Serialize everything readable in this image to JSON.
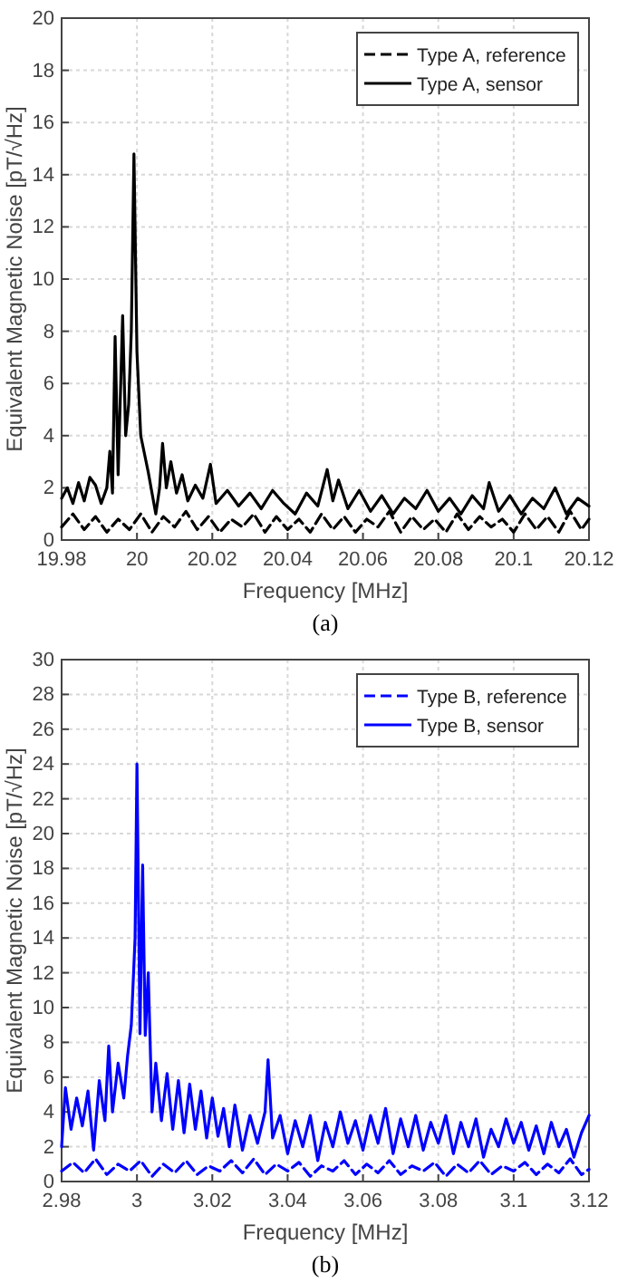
{
  "chart_data": [
    {
      "type": "line",
      "xlabel": "Frequency [MHz]",
      "ylabel": "Equivalent Magnetic Noise [pT/√Hz]",
      "annotations": [
        "(a)"
      ],
      "xlim": [
        19.98,
        20.12
      ],
      "xticks": [
        19.98,
        20,
        20.02,
        20.04,
        20.06,
        20.08,
        20.1,
        20.12
      ],
      "ylim": [
        0,
        20
      ],
      "yticks": [
        0,
        2,
        4,
        6,
        8,
        10,
        12,
        14,
        16,
        18,
        20
      ],
      "grid": true,
      "legend": "top right",
      "series": [
        {
          "name": "Type A, reference",
          "color": "#000000",
          "line_style": "dashed",
          "x": [
            19.98,
            19.983,
            19.986,
            19.989,
            19.992,
            19.995,
            19.998,
            20.001,
            20.004,
            20.007,
            20.01,
            20.013,
            20.016,
            20.019,
            20.022,
            20.025,
            20.028,
            20.031,
            20.034,
            20.037,
            20.04,
            20.043,
            20.046,
            20.049,
            20.052,
            20.055,
            20.058,
            20.061,
            20.064,
            20.067,
            20.07,
            20.073,
            20.076,
            20.079,
            20.082,
            20.085,
            20.088,
            20.091,
            20.094,
            20.097,
            20.1,
            20.103,
            20.106,
            20.109,
            20.112,
            20.115,
            20.118,
            20.12
          ],
          "values": [
            0.5,
            1.0,
            0.4,
            0.9,
            0.3,
            0.8,
            0.4,
            1.0,
            0.3,
            0.9,
            0.5,
            1.1,
            0.4,
            0.9,
            0.3,
            0.8,
            0.5,
            1.0,
            0.3,
            0.9,
            0.4,
            0.8,
            0.3,
            1.0,
            0.4,
            0.9,
            0.3,
            0.8,
            0.5,
            1.1,
            0.3,
            0.9,
            0.4,
            0.8,
            0.3,
            1.0,
            0.4,
            0.9,
            0.5,
            0.8,
            0.3,
            1.0,
            0.4,
            0.9,
            0.3,
            1.1,
            0.4,
            0.8
          ]
        },
        {
          "name": "Type A, sensor",
          "color": "#000000",
          "line_style": "solid",
          "x": [
            19.98,
            19.9815,
            19.983,
            19.9845,
            19.986,
            19.9875,
            19.989,
            19.9905,
            19.992,
            19.9928,
            19.9935,
            19.9942,
            19.995,
            19.9962,
            19.997,
            19.9978,
            19.9985,
            19.9992,
            20.0,
            20.001,
            20.002,
            20.003,
            20.004,
            20.005,
            20.006,
            20.0068,
            20.0078,
            20.009,
            20.0105,
            20.012,
            20.0135,
            20.0155,
            20.0175,
            20.0195,
            20.021,
            20.024,
            20.027,
            20.03,
            20.033,
            20.036,
            20.039,
            20.042,
            20.045,
            20.048,
            20.0505,
            20.052,
            20.0535,
            20.056,
            20.059,
            20.062,
            20.065,
            20.068,
            20.071,
            20.074,
            20.077,
            20.08,
            20.083,
            20.086,
            20.089,
            20.092,
            20.0935,
            20.096,
            20.099,
            20.102,
            20.105,
            20.108,
            20.111,
            20.114,
            20.117,
            20.12
          ],
          "values": [
            1.6,
            2.0,
            1.4,
            2.2,
            1.5,
            2.4,
            2.1,
            1.4,
            2.0,
            3.4,
            1.8,
            7.8,
            2.5,
            8.6,
            4.0,
            5.2,
            8.0,
            14.8,
            7.2,
            4.0,
            3.3,
            2.6,
            1.8,
            1.0,
            2.0,
            3.7,
            2.0,
            3.0,
            1.8,
            2.5,
            1.5,
            2.1,
            1.6,
            2.9,
            1.4,
            1.9,
            1.3,
            1.8,
            1.2,
            1.9,
            1.4,
            1.0,
            1.8,
            1.3,
            2.7,
            1.5,
            2.3,
            1.2,
            1.9,
            1.1,
            1.7,
            1.0,
            1.6,
            1.2,
            1.9,
            1.1,
            1.6,
            1.0,
            1.7,
            1.2,
            2.2,
            1.1,
            1.7,
            1.0,
            1.6,
            1.2,
            2.0,
            1.0,
            1.6,
            1.3
          ]
        }
      ]
    },
    {
      "type": "line",
      "xlabel": "Frequency [MHz]",
      "ylabel": "Equivalent Magnetic Noise [pT/√Hz]",
      "annotations": [
        "(b)"
      ],
      "xlim": [
        2.98,
        3.12
      ],
      "xticks": [
        2.98,
        3,
        3.02,
        3.04,
        3.06,
        3.08,
        3.1,
        3.12
      ],
      "ylim": [
        0,
        30
      ],
      "yticks": [
        0,
        2,
        4,
        6,
        8,
        10,
        12,
        14,
        16,
        18,
        20,
        22,
        24,
        26,
        28,
        30
      ],
      "grid": true,
      "legend": "top right",
      "series": [
        {
          "name": "Type B, reference",
          "color": "#0000ff",
          "line_style": "dashed",
          "x": [
            2.98,
            2.983,
            2.986,
            2.989,
            2.992,
            2.995,
            2.998,
            3.001,
            3.004,
            3.007,
            3.01,
            3.013,
            3.016,
            3.019,
            3.022,
            3.025,
            3.028,
            3.031,
            3.034,
            3.037,
            3.04,
            3.043,
            3.046,
            3.049,
            3.052,
            3.055,
            3.058,
            3.061,
            3.064,
            3.067,
            3.07,
            3.073,
            3.076,
            3.079,
            3.082,
            3.085,
            3.088,
            3.091,
            3.094,
            3.097,
            3.1,
            3.103,
            3.106,
            3.109,
            3.112,
            3.115,
            3.118,
            3.12
          ],
          "values": [
            0.6,
            1.1,
            0.5,
            1.3,
            0.4,
            1.0,
            0.6,
            1.2,
            0.3,
            1.0,
            0.5,
            1.2,
            0.4,
            0.9,
            0.6,
            1.2,
            0.5,
            1.3,
            0.4,
            1.0,
            0.6,
            1.1,
            0.3,
            0.9,
            0.6,
            1.2,
            0.4,
            1.0,
            0.5,
            1.2,
            0.4,
            0.9,
            0.6,
            1.1,
            0.3,
            1.0,
            0.5,
            1.2,
            0.4,
            0.9,
            0.6,
            1.1,
            0.4,
            1.0,
            0.5,
            1.3,
            0.4,
            0.7
          ]
        },
        {
          "name": "Type B, sensor",
          "color": "#0000ff",
          "line_style": "solid",
          "x": [
            2.98,
            2.981,
            2.9825,
            2.984,
            2.9855,
            2.987,
            2.9885,
            2.99,
            2.9915,
            2.9925,
            2.9935,
            2.995,
            2.9965,
            2.9975,
            2.9985,
            2.9995,
            3.0,
            3.0008,
            3.0015,
            3.0022,
            3.003,
            3.004,
            3.005,
            3.0065,
            3.008,
            3.0095,
            3.011,
            3.0125,
            3.014,
            3.0155,
            3.017,
            3.0185,
            3.02,
            3.0215,
            3.023,
            3.0245,
            3.026,
            3.028,
            3.03,
            3.032,
            3.034,
            3.0348,
            3.036,
            3.038,
            3.04,
            3.042,
            3.044,
            3.046,
            3.048,
            3.05,
            3.052,
            3.054,
            3.056,
            3.058,
            3.06,
            3.062,
            3.064,
            3.066,
            3.068,
            3.07,
            3.072,
            3.074,
            3.076,
            3.078,
            3.08,
            3.082,
            3.084,
            3.086,
            3.088,
            3.09,
            3.092,
            3.094,
            3.096,
            3.098,
            3.1,
            3.102,
            3.104,
            3.106,
            3.108,
            3.11,
            3.112,
            3.114,
            3.116,
            3.118,
            3.12
          ],
          "values": [
            2.0,
            5.4,
            3.0,
            4.8,
            3.2,
            5.2,
            1.8,
            5.8,
            3.5,
            7.8,
            4.0,
            6.8,
            4.8,
            7.2,
            9.0,
            14.0,
            24.0,
            8.5,
            18.2,
            8.4,
            12.0,
            4.0,
            6.8,
            3.5,
            6.2,
            3.0,
            5.8,
            2.8,
            5.6,
            3.0,
            5.2,
            2.5,
            4.8,
            2.6,
            4.2,
            2.0,
            4.4,
            1.8,
            3.8,
            2.2,
            4.0,
            7.0,
            2.5,
            3.8,
            1.6,
            3.5,
            2.0,
            3.8,
            1.2,
            3.4,
            2.0,
            4.0,
            2.2,
            3.5,
            1.8,
            3.8,
            2.2,
            4.2,
            1.6,
            3.6,
            2.0,
            3.8,
            1.8,
            3.4,
            2.2,
            3.8,
            1.6,
            3.4,
            2.0,
            3.6,
            1.4,
            3.0,
            2.0,
            3.6,
            2.2,
            3.4,
            1.8,
            3.2,
            1.6,
            3.4,
            2.0,
            3.0,
            1.4,
            2.8,
            3.8
          ]
        }
      ]
    }
  ]
}
